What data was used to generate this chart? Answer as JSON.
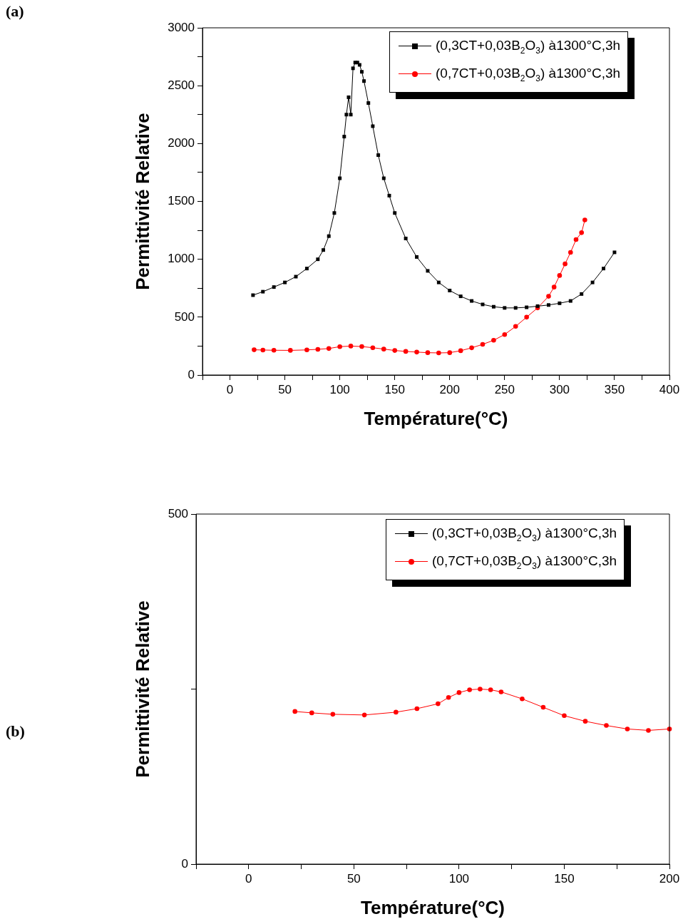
{
  "chart_data": [
    {
      "type": "line",
      "annotations": [
        "(a)"
      ],
      "xlabel": "Température(°C)",
      "ylabel": "Permittivité Relative",
      "xlim": [
        -25,
        400
      ],
      "xticks": [
        {
          "value": -25,
          "label": null
        },
        0,
        {
          "value": 25,
          "label": null
        },
        50,
        {
          "value": 75,
          "label": null
        },
        100,
        {
          "value": 125,
          "label": null
        },
        150,
        {
          "value": 175,
          "label": null
        },
        200,
        {
          "value": 225,
          "label": null
        },
        250,
        {
          "value": 275,
          "label": null
        },
        300,
        {
          "value": 325,
          "label": null
        },
        350,
        {
          "value": 375,
          "label": null
        },
        400
      ],
      "ylim": [
        0,
        3000
      ],
      "yticks": [
        0,
        {
          "value": 250,
          "label": null
        },
        500,
        {
          "value": 750,
          "label": null
        },
        1000,
        {
          "value": 1250,
          "label": null
        },
        1500,
        {
          "value": 1750,
          "label": null
        },
        2000,
        {
          "value": 2250,
          "label": null
        },
        2500,
        {
          "value": 2750,
          "label": null
        },
        3000
      ],
      "grid": false,
      "legend": "top right",
      "line_style": "solid",
      "series": [
        {
          "name": "(0,3CT+0,03B$_{2}$O$_{3}$) à1300°C,3h",
          "color": "#000000",
          "marker": "square",
          "x": [
            21,
            30,
            40,
            50,
            60,
            70,
            80,
            85,
            90,
            95,
            100,
            104,
            106,
            108,
            110,
            112,
            114,
            116,
            118,
            120,
            122,
            126,
            130,
            135,
            140,
            145,
            150,
            160,
            170,
            180,
            190,
            200,
            210,
            220,
            230,
            240,
            250,
            260,
            270,
            280,
            290,
            300,
            310,
            320,
            330,
            340,
            350
          ],
          "values": [
            690,
            720,
            760,
            800,
            850,
            920,
            1000,
            1080,
            1200,
            1400,
            1700,
            2060,
            2250,
            2400,
            2250,
            2650,
            2700,
            2700,
            2680,
            2620,
            2540,
            2350,
            2150,
            1900,
            1700,
            1550,
            1400,
            1180,
            1020,
            900,
            800,
            730,
            680,
            640,
            610,
            590,
            580,
            580,
            585,
            595,
            605,
            620,
            640,
            700,
            800,
            920,
            1060
          ]
        },
        {
          "name": "(0,7CT+0,03B$_{2}$O$_{3}$) à1300°C,3h",
          "color": "#ff0000",
          "marker": "circle",
          "x": [
            22,
            30,
            40,
            55,
            70,
            80,
            90,
            100,
            110,
            120,
            130,
            140,
            150,
            160,
            170,
            180,
            190,
            200,
            210,
            220,
            230,
            240,
            250,
            260,
            270,
            280,
            290,
            295,
            300,
            305,
            310,
            315,
            320,
            323
          ],
          "values": [
            218,
            216,
            214,
            213,
            217,
            222,
            229,
            245,
            250,
            246,
            236,
            224,
            212,
            204,
            198,
            193,
            191,
            193,
            210,
            235,
            265,
            300,
            350,
            420,
            500,
            580,
            680,
            760,
            860,
            960,
            1060,
            1170,
            1230,
            1340
          ]
        }
      ]
    },
    {
      "type": "line",
      "annotations": [
        "(b)"
      ],
      "xlabel": "Température(°C)",
      "ylabel": "Permittivité Relative",
      "xlim": [
        -25,
        200
      ],
      "xticks": [
        {
          "value": -25,
          "label": null
        },
        0,
        {
          "value": 25,
          "label": null
        },
        50,
        {
          "value": 75,
          "label": null
        },
        100,
        {
          "value": 125,
          "label": null
        },
        150,
        {
          "value": 175,
          "label": null
        },
        200
      ],
      "ylim": [
        0,
        500
      ],
      "yticks": [
        0,
        {
          "value": 250,
          "label": null
        },
        500
      ],
      "grid": false,
      "legend": "top right",
      "line_style": "solid",
      "series": [
        {
          "name": "(0,3CT+0,03B$_{2}$O$_{3}$) à1300°C,3h",
          "color": "#000000",
          "marker": "square"
        },
        {
          "name": "(0,7CT+0,03B$_{2}$O$_{3}$) à1300°C,3h",
          "color": "#ff0000",
          "marker": "circle",
          "x": [
            22,
            30,
            40,
            55,
            70,
            80,
            90,
            95,
            100,
            105,
            110,
            115,
            120,
            130,
            140,
            150,
            160,
            170,
            180,
            190,
            200
          ],
          "values": [
            218,
            216,
            214,
            213,
            217,
            222,
            229,
            238,
            245,
            249,
            250,
            249,
            246,
            236,
            224,
            212,
            204,
            198,
            193,
            191,
            193
          ]
        }
      ]
    }
  ]
}
